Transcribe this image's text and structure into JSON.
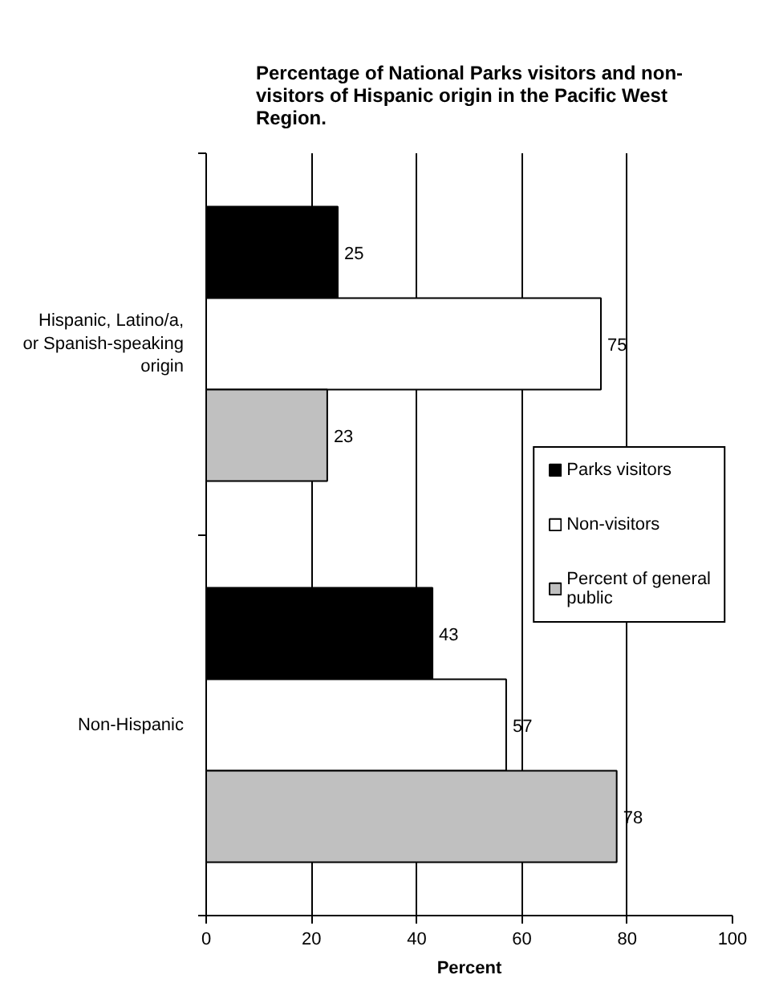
{
  "chart_data": {
    "type": "bar",
    "orientation": "horizontal",
    "title": "Percentage of National Parks visitors and non-visitors of Hispanic origin in the Pacific West Region.",
    "xlabel": "Percent",
    "categories": [
      "Hispanic, Latino/a, or Spanish-speaking origin",
      "Non-Hispanic"
    ],
    "series": [
      {
        "name": "Parks visitors",
        "color": "#000000",
        "values": [
          25,
          43
        ]
      },
      {
        "name": "Non-visitors",
        "color": "#ffffff",
        "values": [
          75,
          57
        ]
      },
      {
        "name": "Percent of general public",
        "color": "#c0c0c0",
        "values": [
          23,
          78
        ]
      }
    ],
    "xlim": [
      0,
      100
    ],
    "xticks": [
      0,
      20,
      40,
      60,
      80,
      100
    ],
    "grid": "x",
    "legend": "right",
    "data_labels": true
  }
}
